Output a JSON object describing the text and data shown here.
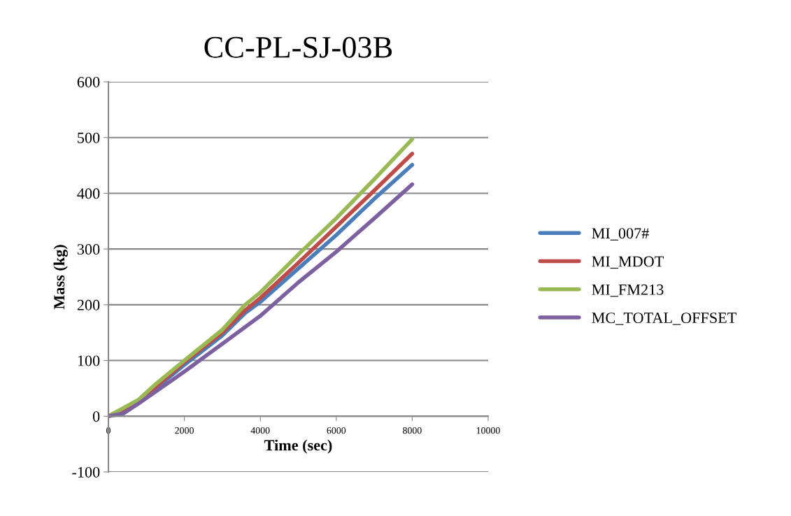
{
  "chart_data": {
    "type": "line",
    "title": "CC-PL-SJ-03B",
    "xlabel": "Time (sec)",
    "ylabel": "Mass (kg)",
    "xlim": [
      0,
      10000
    ],
    "xticks": [
      0,
      2000,
      4000,
      6000,
      8000,
      10000
    ],
    "ylim": [
      -100,
      600
    ],
    "yticks": [
      -100,
      0,
      100,
      200,
      300,
      400,
      500,
      600
    ],
    "grid": "y",
    "legend": "right",
    "marker": "none",
    "line_style": "solid",
    "series": [
      {
        "name": "MI_007#",
        "color": "#4a7ebb",
        "x": [
          0,
          400,
          800,
          1200,
          2000,
          3000,
          3600,
          4000,
          5000,
          6000,
          7000,
          8000
        ],
        "values": [
          0,
          12,
          27,
          48,
          92,
          145,
          185,
          205,
          265,
          325,
          390,
          451
        ]
      },
      {
        "name": "MI_MDOT",
        "color": "#be4b48",
        "x": [
          0,
          400,
          800,
          1200,
          2000,
          3000,
          3600,
          4000,
          5000,
          6000,
          7000,
          8000
        ],
        "values": [
          0,
          13,
          28,
          50,
          97,
          150,
          190,
          212,
          275,
          340,
          405,
          471
        ]
      },
      {
        "name": "MI_FM213",
        "color": "#98b954",
        "x": [
          0,
          400,
          800,
          1200,
          2000,
          3000,
          3600,
          4000,
          5000,
          6000,
          7000,
          8000
        ],
        "values": [
          0,
          15,
          30,
          55,
          100,
          155,
          200,
          222,
          290,
          355,
          425,
          497
        ]
      },
      {
        "name": "MC_TOTAL_OFFSET",
        "color": "#7d60a0",
        "x": [
          0,
          400,
          800,
          1200,
          2000,
          3000,
          4000,
          5000,
          6000,
          7000,
          8000
        ],
        "values": [
          0,
          5,
          23,
          42,
          80,
          130,
          180,
          240,
          295,
          355,
          416
        ]
      }
    ]
  }
}
